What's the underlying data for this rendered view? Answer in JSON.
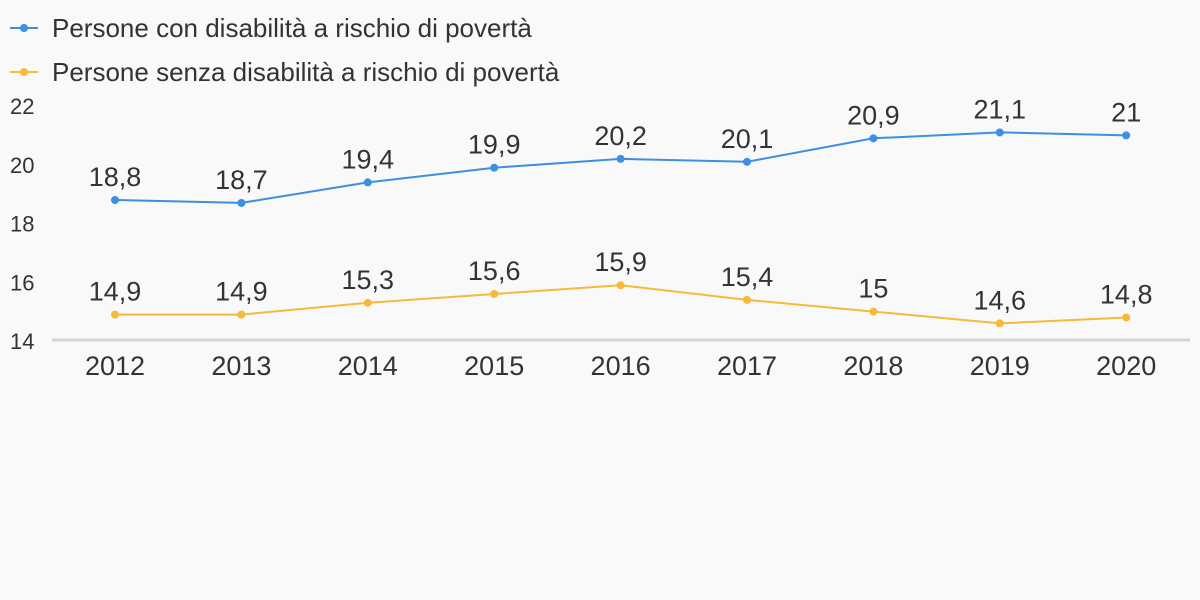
{
  "chart_data": {
    "type": "line",
    "title": "",
    "xlabel": "",
    "ylabel": "",
    "categories": [
      "2012",
      "2013",
      "2014",
      "2015",
      "2016",
      "2017",
      "2018",
      "2019",
      "2020"
    ],
    "ylim": [
      14,
      22
    ],
    "yticks": [
      14,
      16,
      18,
      20,
      22
    ],
    "grid": false,
    "legend_position": "top-left",
    "series": [
      {
        "name": "Persone con disabilità a rischio di povertà",
        "color": "#3d8fe0",
        "values": [
          18.8,
          18.7,
          19.4,
          19.9,
          20.2,
          20.1,
          20.9,
          21.1,
          21
        ],
        "labels": [
          "18,8",
          "18,7",
          "19,4",
          "19,9",
          "20,2",
          "20,1",
          "20,9",
          "21,1",
          "21"
        ]
      },
      {
        "name": "Persone senza disabilità a rischio di povertà",
        "color": "#f7b93a",
        "values": [
          14.9,
          14.9,
          15.3,
          15.6,
          15.9,
          15.4,
          15,
          14.6,
          14.8
        ],
        "labels": [
          "14,9",
          "14,9",
          "15,3",
          "15,6",
          "15,9",
          "15,4",
          "15",
          "14,6",
          "14,8"
        ]
      }
    ]
  }
}
